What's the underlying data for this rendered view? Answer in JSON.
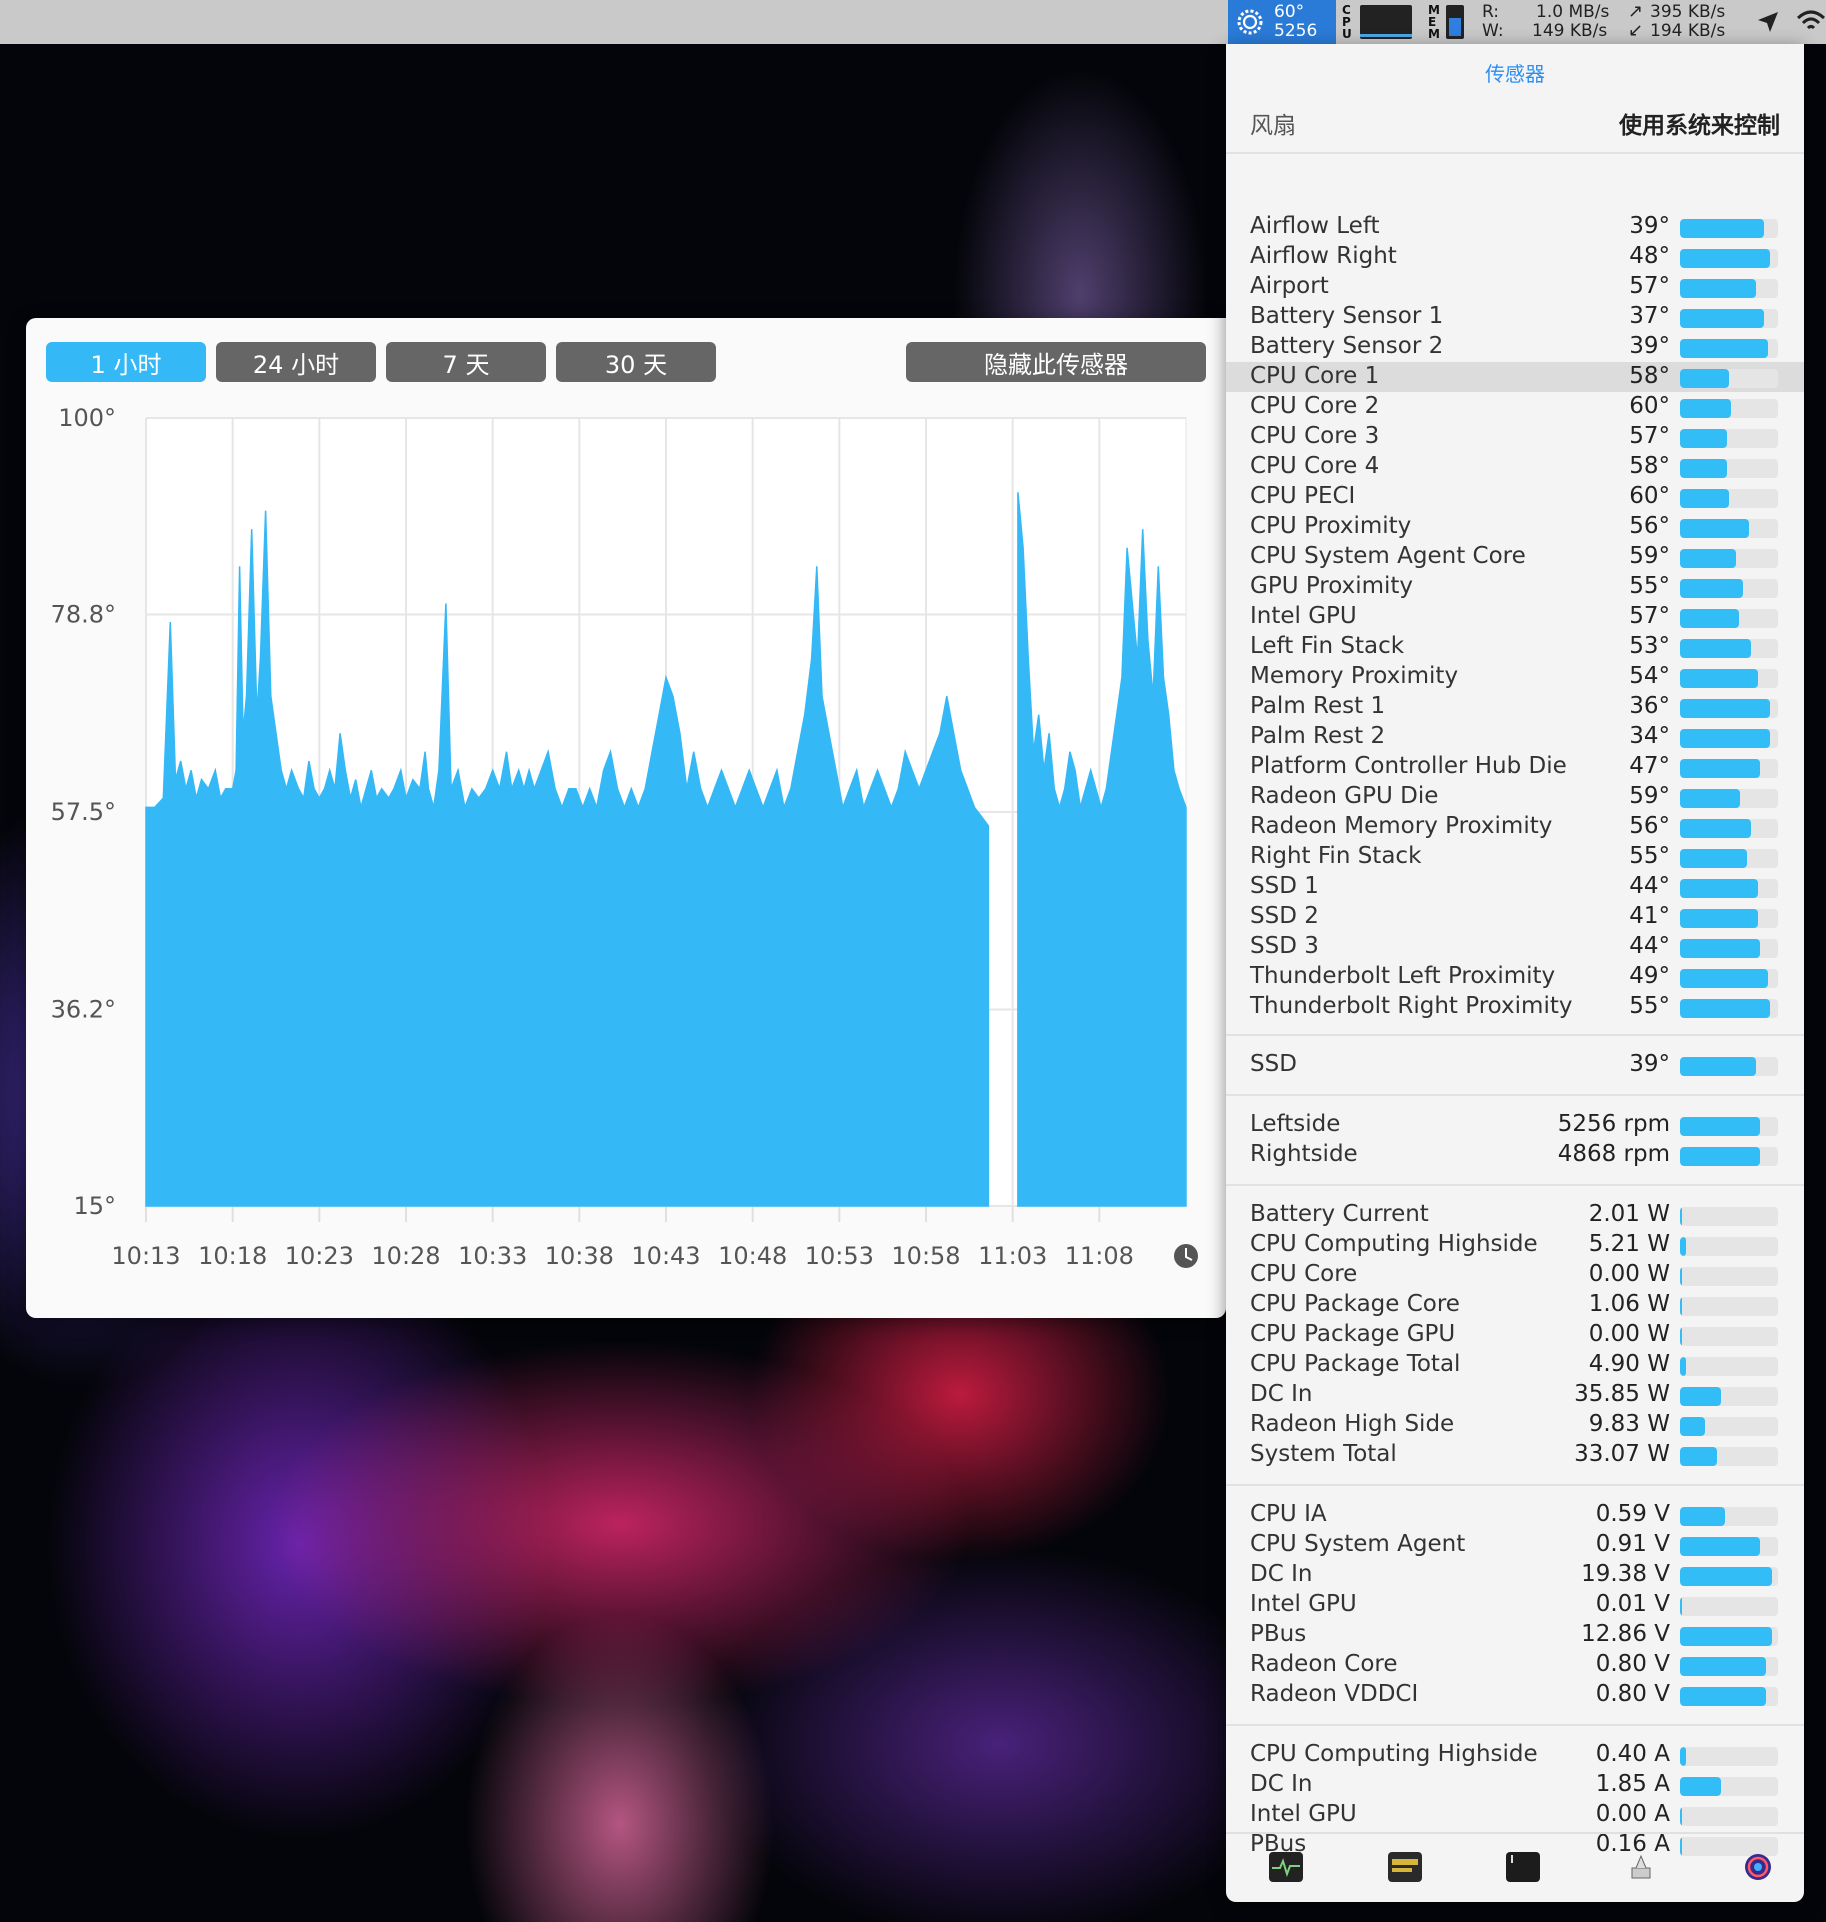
{
  "menubar": {
    "temp": "60°",
    "rpm": "5256",
    "cpu_label": "CPU",
    "mem_label": "MEM",
    "disk_r_label": "R:",
    "disk_w_label": "W:",
    "disk_r": "1.0 MB/s",
    "disk_w": "149 KB/s",
    "net_up": "395 KB/s",
    "net_down": "194 KB/s",
    "net_up_arrow": "↗",
    "net_down_arrow": "↙"
  },
  "panel": {
    "title": "传感器",
    "fan_label": "风扇",
    "fan_control": "使用系统来控制",
    "temperature_sensors": [
      {
        "name": "Airflow Left",
        "value": "39°",
        "level": 0.86
      },
      {
        "name": "Airflow Right",
        "value": "48°",
        "level": 0.92
      },
      {
        "name": "Airport",
        "value": "57°",
        "level": 0.78
      },
      {
        "name": "Battery Sensor 1",
        "value": "37°",
        "level": 0.86
      },
      {
        "name": "Battery Sensor 2",
        "value": "39°",
        "level": 0.9
      },
      {
        "name": "CPU Core 1",
        "value": "58°",
        "level": 0.5
      },
      {
        "name": "CPU Core 2",
        "value": "60°",
        "level": 0.52
      },
      {
        "name": "CPU Core 3",
        "value": "57°",
        "level": 0.48
      },
      {
        "name": "CPU Core 4",
        "value": "58°",
        "level": 0.48
      },
      {
        "name": "CPU PECI",
        "value": "60°",
        "level": 0.5
      },
      {
        "name": "CPU Proximity",
        "value": "56°",
        "level": 0.7
      },
      {
        "name": "CPU System Agent Core",
        "value": "59°",
        "level": 0.57
      },
      {
        "name": "GPU Proximity",
        "value": "55°",
        "level": 0.64
      },
      {
        "name": "Intel GPU",
        "value": "57°",
        "level": 0.6
      },
      {
        "name": "Left Fin Stack",
        "value": "53°",
        "level": 0.72
      },
      {
        "name": "Memory Proximity",
        "value": "54°",
        "level": 0.8
      },
      {
        "name": "Palm Rest 1",
        "value": "36°",
        "level": 0.92
      },
      {
        "name": "Palm Rest 2",
        "value": "34°",
        "level": 0.92
      },
      {
        "name": "Platform Controller Hub Die",
        "value": "47°",
        "level": 0.82
      },
      {
        "name": "Radeon GPU Die",
        "value": "59°",
        "level": 0.61
      },
      {
        "name": "Radeon Memory Proximity",
        "value": "56°",
        "level": 0.72
      },
      {
        "name": "Right Fin Stack",
        "value": "55°",
        "level": 0.68
      },
      {
        "name": "SSD 1",
        "value": "44°",
        "level": 0.8
      },
      {
        "name": "SSD 2",
        "value": "41°",
        "level": 0.8
      },
      {
        "name": "SSD 3",
        "value": "44°",
        "level": 0.82
      },
      {
        "name": "Thunderbolt Left Proximity",
        "value": "49°",
        "level": 0.9
      },
      {
        "name": "Thunderbolt Right Proximity",
        "value": "55°",
        "level": 0.92
      }
    ],
    "ssd_sensors": [
      {
        "name": "SSD",
        "value": "39°",
        "level": 0.78
      }
    ],
    "fans": [
      {
        "name": "Leftside",
        "value": "5256 rpm",
        "level": 0.82
      },
      {
        "name": "Rightside",
        "value": "4868 rpm",
        "level": 0.82
      }
    ],
    "power": [
      {
        "name": "Battery Current",
        "value": "2.01 W",
        "level": 0.02
      },
      {
        "name": "CPU Computing Highside",
        "value": "5.21 W",
        "level": 0.06
      },
      {
        "name": "CPU Core",
        "value": "0.00 W",
        "level": 0.0
      },
      {
        "name": "CPU Package Core",
        "value": "1.06 W",
        "level": 0.02
      },
      {
        "name": "CPU Package GPU",
        "value": "0.00 W",
        "level": 0.0
      },
      {
        "name": "CPU Package Total",
        "value": "4.90 W",
        "level": 0.06
      },
      {
        "name": "DC In",
        "value": "35.85 W",
        "level": 0.42
      },
      {
        "name": "Radeon High Side",
        "value": "9.83 W",
        "level": 0.26
      },
      {
        "name": "System Total",
        "value": "33.07 W",
        "level": 0.38
      }
    ],
    "voltage": [
      {
        "name": "CPU IA",
        "value": "0.59 V",
        "level": 0.46
      },
      {
        "name": "CPU System Agent",
        "value": "0.91 V",
        "level": 0.82
      },
      {
        "name": "DC In",
        "value": "19.38 V",
        "level": 0.94
      },
      {
        "name": "Intel GPU",
        "value": "0.01 V",
        "level": 0.02
      },
      {
        "name": "PBus",
        "value": "12.86 V",
        "level": 0.94
      },
      {
        "name": "Radeon Core",
        "value": "0.80 V",
        "level": 0.88
      },
      {
        "name": "Radeon VDDCI",
        "value": "0.80 V",
        "level": 0.88
      }
    ],
    "current": [
      {
        "name": "CPU Computing Highside",
        "value": "0.40 A",
        "level": 0.06
      },
      {
        "name": "DC In",
        "value": "1.85 A",
        "level": 0.42
      },
      {
        "name": "Intel GPU",
        "value": "0.00 A",
        "level": 0.0
      },
      {
        "name": "PBus",
        "value": "0.16 A",
        "level": 0.02
      }
    ],
    "dock_icons": [
      "activity-monitor-icon",
      "console-icon",
      "terminal-icon",
      "system-info-icon",
      "istat-icon"
    ]
  },
  "chart_window": {
    "buttons": [
      {
        "label": "1 小时",
        "active": true
      },
      {
        "label": "24 小时",
        "active": false
      },
      {
        "label": "7 天",
        "active": false
      },
      {
        "label": "30 天",
        "active": false
      }
    ],
    "hide_button": "隐藏此传感器"
  },
  "colors": {
    "accent": "#35b8f6",
    "chart_fill": "#35b8f6",
    "button_inactive": "#666666",
    "panel_title": "#2c8ff0"
  },
  "chart_data": {
    "type": "area",
    "series_sensor": "CPU Core 1",
    "title": "",
    "xlabel": "",
    "ylabel": "",
    "ylim": [
      15,
      100
    ],
    "y_tick_labels": [
      "100°",
      "78.8°",
      "57.5°",
      "36.2°",
      "15°"
    ],
    "y_ticks": [
      100,
      78.8,
      57.5,
      36.2,
      15
    ],
    "x_tick_labels": [
      "10:13",
      "10:18",
      "10:23",
      "10:28",
      "10:33",
      "10:38",
      "10:43",
      "10:48",
      "10:53",
      "10:58",
      "11:03",
      "11:08"
    ],
    "x_range_minutes": [
      0,
      60
    ],
    "gap_minutes": [
      48.6,
      50.3
    ],
    "grid": true,
    "series": [
      {
        "values": [
          [
            0,
            58
          ],
          [
            0.5,
            58
          ],
          [
            1,
            59
          ],
          [
            1.4,
            78
          ],
          [
            1.7,
            61
          ],
          [
            2,
            63
          ],
          [
            2.3,
            60
          ],
          [
            2.6,
            62
          ],
          [
            2.9,
            59
          ],
          [
            3.2,
            61
          ],
          [
            3.6,
            60
          ],
          [
            4,
            62
          ],
          [
            4.3,
            59
          ],
          [
            4.6,
            60
          ],
          [
            5,
            60
          ],
          [
            5.2,
            62
          ],
          [
            5.4,
            84
          ],
          [
            5.6,
            66
          ],
          [
            5.8,
            70
          ],
          [
            6.1,
            88
          ],
          [
            6.4,
            68
          ],
          [
            6.6,
            74
          ],
          [
            6.9,
            90
          ],
          [
            7.2,
            70
          ],
          [
            7.5,
            66
          ],
          [
            7.8,
            62
          ],
          [
            8.1,
            60
          ],
          [
            8.4,
            62
          ],
          [
            8.8,
            60
          ],
          [
            9.1,
            59
          ],
          [
            9.4,
            63
          ],
          [
            9.7,
            60
          ],
          [
            10,
            59
          ],
          [
            10.3,
            60
          ],
          [
            10.6,
            62
          ],
          [
            10.9,
            60
          ],
          [
            11.2,
            66
          ],
          [
            11.5,
            62
          ],
          [
            11.8,
            59
          ],
          [
            12.1,
            61
          ],
          [
            12.4,
            58
          ],
          [
            12.7,
            60
          ],
          [
            13,
            62
          ],
          [
            13.3,
            59
          ],
          [
            13.6,
            60
          ],
          [
            14,
            59
          ],
          [
            14.3,
            60
          ],
          [
            14.7,
            62
          ],
          [
            15,
            59
          ],
          [
            15.4,
            61
          ],
          [
            15.8,
            60
          ],
          [
            16.1,
            64
          ],
          [
            16.3,
            60
          ],
          [
            16.6,
            58
          ],
          [
            16.9,
            62
          ],
          [
            17.3,
            80
          ],
          [
            17.6,
            60
          ],
          [
            18,
            62
          ],
          [
            18.4,
            58
          ],
          [
            18.8,
            60
          ],
          [
            19.2,
            59
          ],
          [
            19.6,
            60
          ],
          [
            20,
            62
          ],
          [
            20.4,
            60
          ],
          [
            20.8,
            64
          ],
          [
            21.1,
            60
          ],
          [
            21.5,
            62
          ],
          [
            21.8,
            60
          ],
          [
            22.1,
            62
          ],
          [
            22.4,
            60
          ],
          [
            22.8,
            62
          ],
          [
            23.2,
            64
          ],
          [
            23.6,
            60
          ],
          [
            24,
            58
          ],
          [
            24.4,
            60
          ],
          [
            24.8,
            60
          ],
          [
            25.2,
            58
          ],
          [
            25.6,
            60
          ],
          [
            26,
            58
          ],
          [
            26.4,
            62
          ],
          [
            26.8,
            64
          ],
          [
            27.2,
            60
          ],
          [
            27.6,
            58
          ],
          [
            28,
            60
          ],
          [
            28.4,
            58
          ],
          [
            28.8,
            60
          ],
          [
            29.2,
            64
          ],
          [
            29.6,
            68
          ],
          [
            30,
            72
          ],
          [
            30.4,
            70
          ],
          [
            30.8,
            66
          ],
          [
            31.2,
            60
          ],
          [
            31.6,
            64
          ],
          [
            32,
            60
          ],
          [
            32.4,
            58
          ],
          [
            32.8,
            60
          ],
          [
            33.2,
            62
          ],
          [
            33.6,
            60
          ],
          [
            34,
            58
          ],
          [
            34.4,
            60
          ],
          [
            34.8,
            62
          ],
          [
            35.2,
            60
          ],
          [
            35.6,
            58
          ],
          [
            36,
            60
          ],
          [
            36.4,
            62
          ],
          [
            36.8,
            58
          ],
          [
            37.2,
            60
          ],
          [
            37.6,
            64
          ],
          [
            38,
            68
          ],
          [
            38.4,
            74
          ],
          [
            38.7,
            84
          ],
          [
            39.0,
            70
          ],
          [
            39.4,
            66
          ],
          [
            39.8,
            62
          ],
          [
            40.2,
            58
          ],
          [
            40.6,
            60
          ],
          [
            41,
            62
          ],
          [
            41.4,
            58
          ],
          [
            41.8,
            60
          ],
          [
            42.2,
            62
          ],
          [
            42.6,
            60
          ],
          [
            43,
            58
          ],
          [
            43.4,
            60
          ],
          [
            43.8,
            64
          ],
          [
            44.2,
            62
          ],
          [
            44.6,
            60
          ],
          [
            45,
            62
          ],
          [
            45.4,
            64
          ],
          [
            45.8,
            66
          ],
          [
            46.2,
            70
          ],
          [
            46.6,
            66
          ],
          [
            47,
            62
          ],
          [
            47.4,
            60
          ],
          [
            47.8,
            58
          ],
          [
            48.2,
            57
          ],
          [
            48.6,
            56
          ]
        ]
      },
      {
        "values": [
          [
            50.3,
            92
          ],
          [
            50.6,
            86
          ],
          [
            50.9,
            74
          ],
          [
            51.2,
            64
          ],
          [
            51.5,
            68
          ],
          [
            51.8,
            62
          ],
          [
            52.1,
            66
          ],
          [
            52.4,
            60
          ],
          [
            52.7,
            58
          ],
          [
            53,
            60
          ],
          [
            53.3,
            64
          ],
          [
            53.6,
            62
          ],
          [
            53.9,
            58
          ],
          [
            54.2,
            60
          ],
          [
            54.5,
            62
          ],
          [
            54.8,
            60
          ],
          [
            55.1,
            58
          ],
          [
            55.4,
            60
          ],
          [
            55.7,
            64
          ],
          [
            56,
            68
          ],
          [
            56.3,
            72
          ],
          [
            56.6,
            86
          ],
          [
            56.9,
            80
          ],
          [
            57.2,
            74
          ],
          [
            57.5,
            88
          ],
          [
            57.8,
            76
          ],
          [
            58.1,
            70
          ],
          [
            58.4,
            84
          ],
          [
            58.7,
            72
          ],
          [
            59,
            68
          ],
          [
            59.3,
            62
          ],
          [
            59.6,
            60
          ],
          [
            60,
            58
          ]
        ]
      }
    ]
  }
}
